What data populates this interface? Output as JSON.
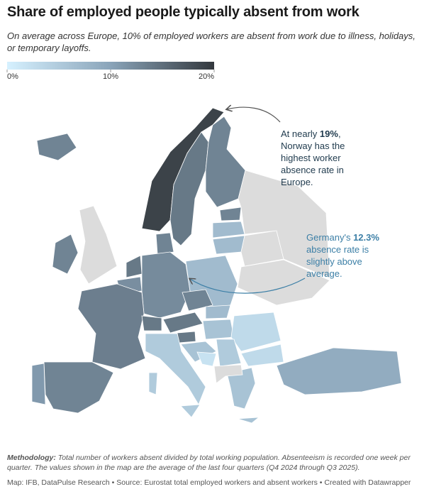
{
  "header": {
    "title": "Share of employed people typically absent from work",
    "subtitle": "On average across Europe, 10% of employed workers are absent from work due to illness, holidays, or temporary layoffs."
  },
  "legend": {
    "range": [
      0,
      20
    ],
    "colors": [
      "#d6f1ff",
      "#8aa4b9",
      "#33383d"
    ],
    "ticks": [
      {
        "value": 0,
        "label": "0%"
      },
      {
        "value": 10,
        "label": "10%"
      },
      {
        "value": 20,
        "label": "20%"
      }
    ]
  },
  "map": {
    "no_data_color": "#dcdcdc",
    "values": [
      13,
      19,
      14,
      13,
      13,
      7,
      7,
      null,
      null,
      null,
      null,
      13,
      13,
      14,
      12,
      12.3,
      7,
      13.5,
      13,
      11,
      14,
      14,
      13,
      7,
      6,
      3,
      3,
      14,
      6,
      2,
      5,
      5,
      6,
      9,
      null
    ]
  },
  "annotations": [
    {
      "parts": [
        "At nearly ",
        "19%",
        ", Norway has the highest worker absence rate in Europe."
      ],
      "color": "#1f3a4d"
    },
    {
      "parts": [
        "Germany's ",
        "12.3%",
        " absence rate is slightly above average."
      ],
      "color": "#3c7fa6"
    }
  ],
  "footer": {
    "methodology_label": "Methodology:",
    "methodology": "Total number of workers absent divided by total working population. Absenteeism is recorded one week per quarter. The values shown in the map are the average of the last four quarters (Q4 2024 through Q3 2025).",
    "source": "Map: IFB, DataPulse Research • Source: Eurostat total employed workers and absent workers • Created with Datawrapper"
  }
}
